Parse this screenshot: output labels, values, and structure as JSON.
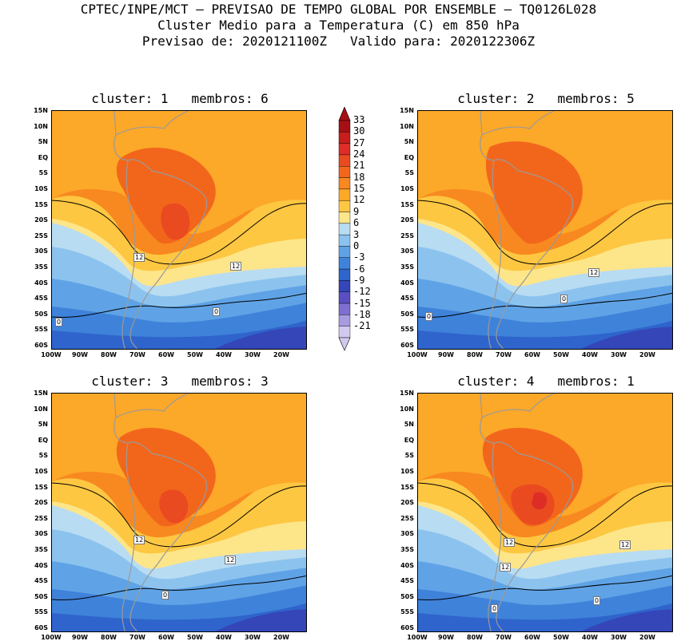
{
  "header": {
    "line1": "CPTEC/INPE/MCT – PREVISAO DE TEMPO GLOBAL POR ENSEMBLE – TQ0126L028",
    "line2": "Cluster Medio para a Temperatura (C) em 850 hPa",
    "line3": "Previsao de: 2020121100Z   Valido para: 2020122306Z"
  },
  "panels": [
    {
      "title": "cluster: 1   membros: 6",
      "contour_labels": [
        "12",
        "12",
        "0",
        "0"
      ]
    },
    {
      "title": "cluster: 2   membros: 5",
      "contour_labels": [
        "12",
        "0",
        "0"
      ]
    },
    {
      "title": "cluster: 3   membros: 3",
      "contour_labels": [
        "12",
        "12",
        "0"
      ]
    },
    {
      "title": "cluster: 4   membros: 1",
      "contour_labels": [
        "12",
        "12",
        "12",
        "0",
        "0"
      ]
    }
  ],
  "axes": {
    "lat_labels": [
      "15N",
      "10N",
      "5N",
      "EQ",
      "5S",
      "10S",
      "15S",
      "20S",
      "25S",
      "30S",
      "35S",
      "40S",
      "45S",
      "50S",
      "55S",
      "60S"
    ],
    "lon_labels": [
      "100W",
      "90W",
      "80W",
      "70W",
      "60W",
      "50W",
      "40W",
      "30W",
      "20W"
    ]
  },
  "colorbar": {
    "labels": [
      "33",
      "30",
      "27",
      "24",
      "21",
      "18",
      "15",
      "12",
      "9",
      "6",
      "3",
      "0",
      "-3",
      "-6",
      "-9",
      "-12",
      "-15",
      "-18",
      "-21"
    ],
    "colors": [
      "#a50f15",
      "#c81d1d",
      "#de2d26",
      "#ea4a20",
      "#f2661c",
      "#f88820",
      "#fca828",
      "#fdc742",
      "#fde58a",
      "#b8dcf2",
      "#8cc3ee",
      "#5fa3e6",
      "#3f82da",
      "#2f64cc",
      "#3446b8",
      "#5a4fc2",
      "#7f6fd2",
      "#a89be0",
      "#d2c9ef"
    ]
  }
}
